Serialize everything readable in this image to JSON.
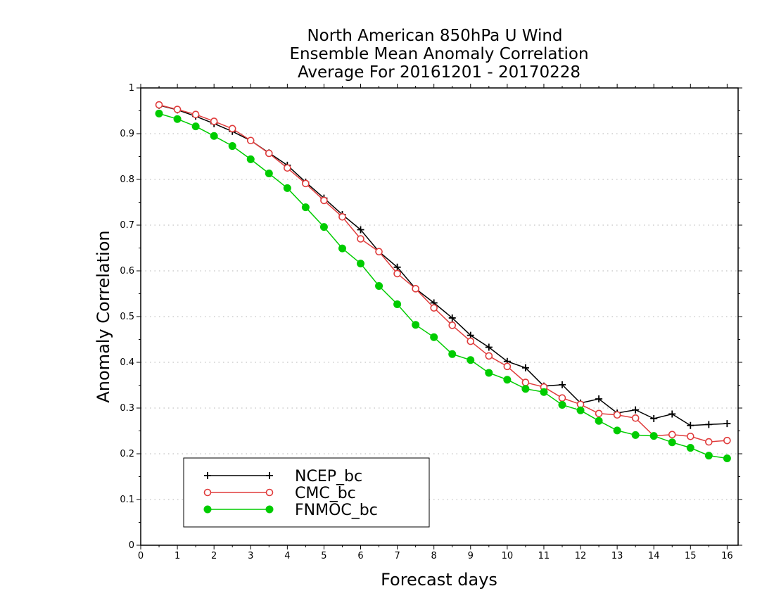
{
  "chart_data": {
    "type": "line",
    "title": [
      "North American 850hPa U Wind",
      "Ensemble Mean Anomaly Correlation",
      "Average For 20161201 - 20170228"
    ],
    "xlabel": "Forecast days",
    "ylabel": "Anomaly Correlation",
    "xlim": [
      0,
      16.3
    ],
    "ylim": [
      0,
      1
    ],
    "xticks": [
      "0",
      "1",
      "2",
      "3",
      "4",
      "5",
      "6",
      "7",
      "8",
      "9",
      "10",
      "11",
      "12",
      "13",
      "14",
      "15",
      "16"
    ],
    "yticks": [
      "0",
      "0.1",
      "0.2",
      "0.3",
      "0.4",
      "0.5",
      "0.6",
      "0.7",
      "0.8",
      "0.9",
      "1"
    ],
    "grid": true,
    "legend_position": "bottom-left",
    "x": [
      0.5,
      1,
      1.5,
      2,
      2.5,
      3,
      3.5,
      4,
      4.5,
      5,
      5.5,
      6,
      6.5,
      7,
      7.5,
      8,
      8.5,
      9,
      9.5,
      10,
      10.5,
      11,
      11.5,
      12,
      12.5,
      13,
      13.5,
      14,
      14.5,
      15,
      15.5,
      16
    ],
    "series": [
      {
        "name": "NCEP_bc",
        "color": "#000000",
        "marker": "plus",
        "values": [
          0.962,
          0.952,
          0.938,
          0.922,
          0.905,
          0.885,
          0.858,
          0.831,
          0.794,
          0.759,
          0.723,
          0.69,
          0.642,
          0.608,
          0.561,
          0.53,
          0.497,
          0.459,
          0.433,
          0.402,
          0.388,
          0.348,
          0.351,
          0.311,
          0.32,
          0.289,
          0.296,
          0.277,
          0.287,
          0.262,
          0.264,
          0.266
        ]
      },
      {
        "name": "CMC_bc",
        "color": "#e03c3c",
        "marker": "open-circle",
        "values": [
          0.963,
          0.953,
          0.942,
          0.927,
          0.911,
          0.885,
          0.857,
          0.825,
          0.791,
          0.754,
          0.718,
          0.67,
          0.642,
          0.594,
          0.561,
          0.519,
          0.481,
          0.446,
          0.414,
          0.391,
          0.356,
          0.346,
          0.322,
          0.308,
          0.288,
          0.285,
          0.278,
          0.239,
          0.242,
          0.238,
          0.226,
          0.229
        ]
      },
      {
        "name": "FNMOC_bc",
        "color": "#00cc00",
        "marker": "filled-circle",
        "values": [
          0.944,
          0.932,
          0.916,
          0.895,
          0.873,
          0.844,
          0.813,
          0.781,
          0.739,
          0.696,
          0.649,
          0.616,
          0.567,
          0.527,
          0.482,
          0.455,
          0.418,
          0.405,
          0.377,
          0.362,
          0.342,
          0.335,
          0.307,
          0.295,
          0.272,
          0.251,
          0.241,
          0.239,
          0.225,
          0.213,
          0.196,
          0.19
        ]
      }
    ]
  }
}
